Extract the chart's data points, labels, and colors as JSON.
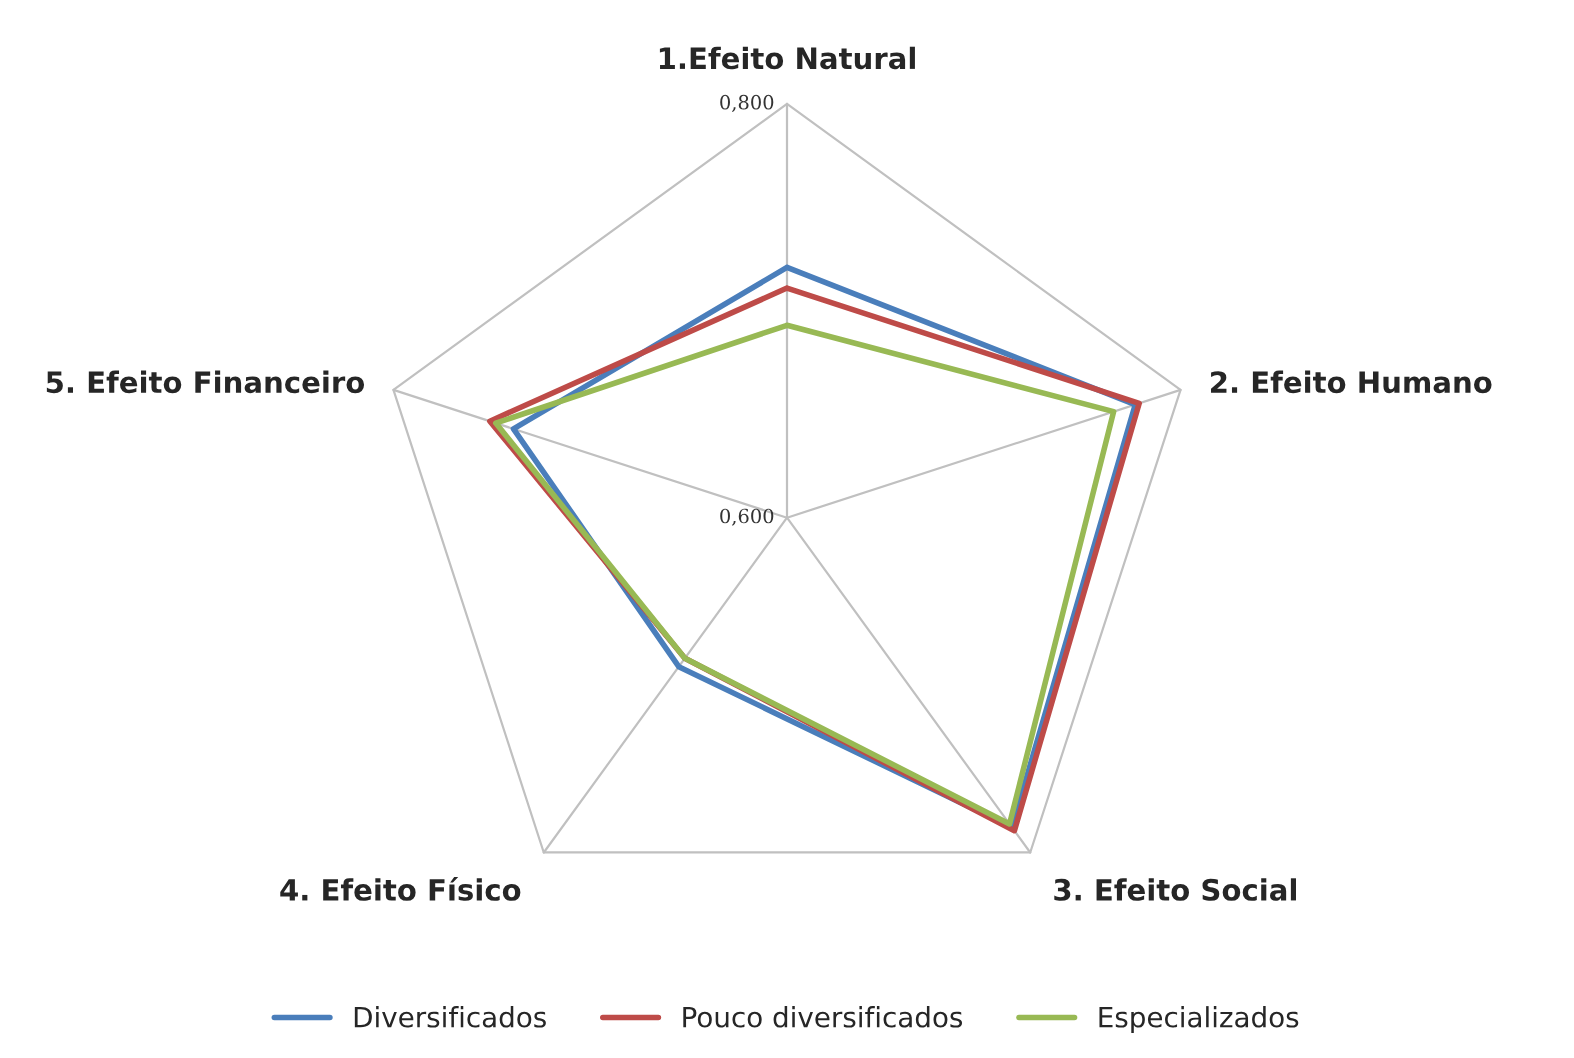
{
  "chart_data": {
    "type": "radar",
    "categories": [
      "1.Efeito Natural",
      "2. Efeito Humano",
      "3. Efeito Social",
      "4. Efeito Físico",
      "5. Efeito Financeiro"
    ],
    "series": [
      {
        "name": "Diversificados",
        "color": "#4a7ebb",
        "values": [
          0.721,
          0.777,
          0.785,
          0.689,
          0.739
        ]
      },
      {
        "name": "Pouco diversificados",
        "color": "#be4b48",
        "values": [
          0.711,
          0.779,
          0.787,
          0.684,
          0.751
        ]
      },
      {
        "name": "Especializados",
        "color": "#98b954",
        "values": [
          0.693,
          0.766,
          0.783,
          0.684,
          0.748
        ]
      }
    ],
    "ylim": [
      0.6,
      0.8
    ],
    "yticks": [
      {
        "value": 0.6,
        "label": "0,600"
      },
      {
        "value": 0.8,
        "label": "0,800"
      }
    ],
    "grid": true,
    "legend": "bottom"
  }
}
